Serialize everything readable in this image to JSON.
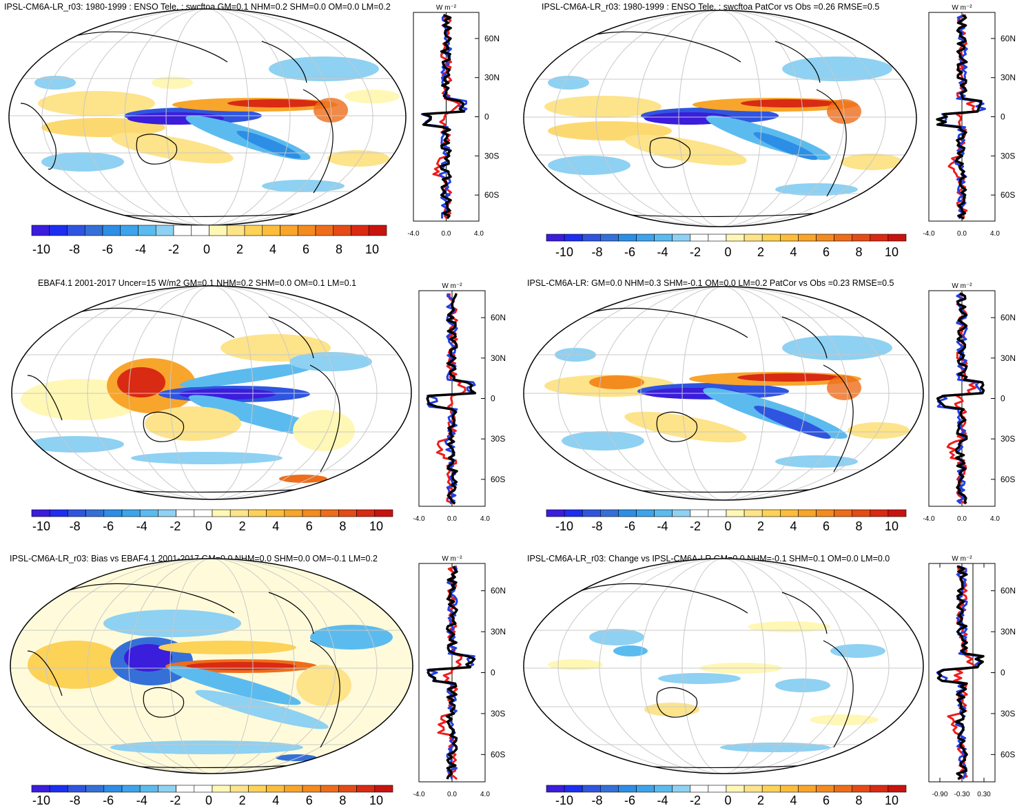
{
  "colorbar": {
    "labels": [
      "-10",
      "-8",
      "-6",
      "-4",
      "-2",
      "0",
      "2",
      "4",
      "6",
      "8",
      "10"
    ],
    "colors": [
      "#3b1ddc",
      "#1d2ef0",
      "#2f55e0",
      "#3570d8",
      "#2d8ee6",
      "#3da4ec",
      "#5bbbef",
      "#8ed1f2",
      "#ffffff",
      "#ffffff",
      "#fff7b5",
      "#fde38a",
      "#fcd257",
      "#fbbd3b",
      "#f8a52b",
      "#f38b1f",
      "#ee6d1a",
      "#e54b16",
      "#d92a13",
      "#c8140f"
    ]
  },
  "unit_label": "W m⁻²",
  "lat_labels": [
    "60N",
    "30N",
    "0",
    "30S",
    "60S"
  ],
  "series_colors": {
    "blue": "#1f3fe6",
    "red": "#ee1c1c",
    "black": "#000000"
  },
  "chart_data": [
    {
      "type": "heatmap",
      "title": "IPSL-CM6A-LR_r03: 1980-1999 : ENSO Tele. : swcftoa GM=0.1 NHM=0.2 SHM=0.0 OM=0.0 LM=0.2",
      "profile": {
        "xticks": [
          "-4.0",
          "0.0",
          "4.0"
        ],
        "xlim": [
          -4,
          4
        ],
        "ylim": [
          -80,
          80
        ]
      }
    },
    {
      "type": "heatmap",
      "title": "IPSL-CM6A-LR_r03: 1980-1999 : ENSO Tele. : swcftoa PatCor vs Obs =0.26 RMSE=0.5",
      "profile": {
        "xticks": [
          "-4.0",
          "0.0",
          "4.0"
        ],
        "xlim": [
          -4,
          4
        ],
        "ylim": [
          -80,
          80
        ]
      }
    },
    {
      "type": "heatmap",
      "title": "EBAF4.1 2001-2017 Uncer=15 W/m2 GM=0.1 NHM=0.2 SHM=0.0 OM=0.1 LM=0.1",
      "profile": {
        "xticks": [
          "-4.0",
          "0.0",
          "4.0"
        ],
        "xlim": [
          -4,
          4
        ],
        "ylim": [
          -80,
          80
        ]
      }
    },
    {
      "type": "heatmap",
      "title": "IPSL-CM6A-LR: GM=0.0 NHM=0.3 SHM=-0.1 OM=0.0 LM=0.2 PatCor vs Obs =0.23 RMSE=0.5",
      "profile": {
        "xticks": [
          "-4.0",
          "0.0",
          "4.0"
        ],
        "xlim": [
          -4,
          4
        ],
        "ylim": [
          -80,
          80
        ]
      }
    },
    {
      "type": "heatmap",
      "title": "IPSL-CM6A-LR_r03: Bias vs EBAF4.1 2001-2017 GM=0.0 NHM=0.0 SHM=0.0 OM=-0.1 LM=0.2",
      "profile": {
        "xticks": [
          "-4.0",
          "0.0",
          "4.0"
        ],
        "xlim": [
          -4,
          4
        ],
        "ylim": [
          -80,
          80
        ]
      }
    },
    {
      "type": "heatmap",
      "title": "IPSL-CM6A-LR_r03: Change vs IPSL-CM6A-LR GM=0.0 NHM=-0.1 SHM=0.1 OM=0.0 LM=0.0",
      "profile": {
        "xticks": [
          "-0.90",
          "-0.30",
          "0.30"
        ],
        "xlim": [
          -1.2,
          0.6
        ],
        "ylim": [
          -80,
          80
        ]
      }
    }
  ]
}
